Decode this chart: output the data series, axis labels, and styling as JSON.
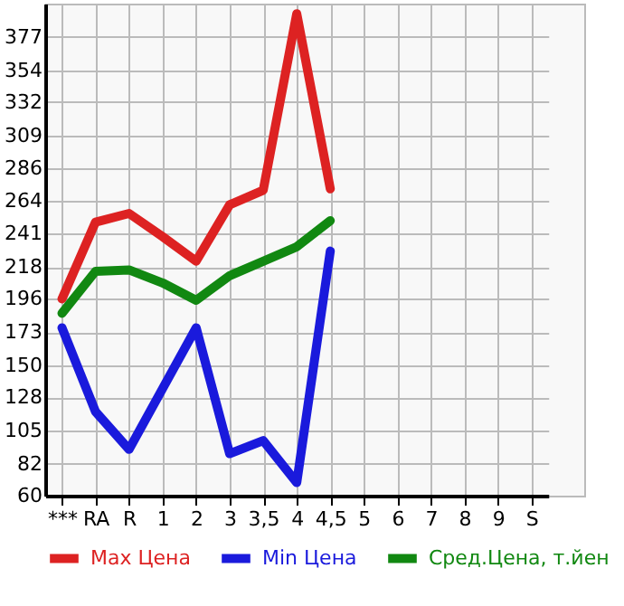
{
  "chart_data": {
    "type": "line",
    "categories": [
      "***",
      "RA",
      "R",
      "1",
      "2",
      "3",
      "3,5",
      "4",
      "4,5",
      "5",
      "6",
      "7",
      "8",
      "9",
      "S"
    ],
    "series": [
      {
        "name": "Max Цена",
        "color": "#dd2222",
        "values": [
          196,
          249,
          255,
          239,
          222,
          261,
          271,
          393,
          272,
          null,
          null,
          null,
          null,
          null,
          null
        ]
      },
      {
        "name": "Min Цена",
        "color": "#1a1adc",
        "values": [
          176,
          118,
          92,
          134,
          176,
          89,
          98,
          69,
          229,
          null,
          null,
          null,
          null,
          null,
          null
        ]
      },
      {
        "name": "Сред.Цена, т.йен",
        "color": "#118811",
        "values": [
          186,
          215,
          216,
          207,
          195,
          212,
          222,
          232,
          250,
          null,
          null,
          null,
          null,
          null,
          null
        ]
      }
    ],
    "ylim": [
      60,
      400
    ],
    "yticks": [
      60,
      82,
      105,
      128,
      150,
      173,
      196,
      218,
      241,
      264,
      286,
      309,
      332,
      354,
      377
    ],
    "grid": true,
    "legend": "bottom",
    "marker": "none",
    "line_style": "solid"
  }
}
